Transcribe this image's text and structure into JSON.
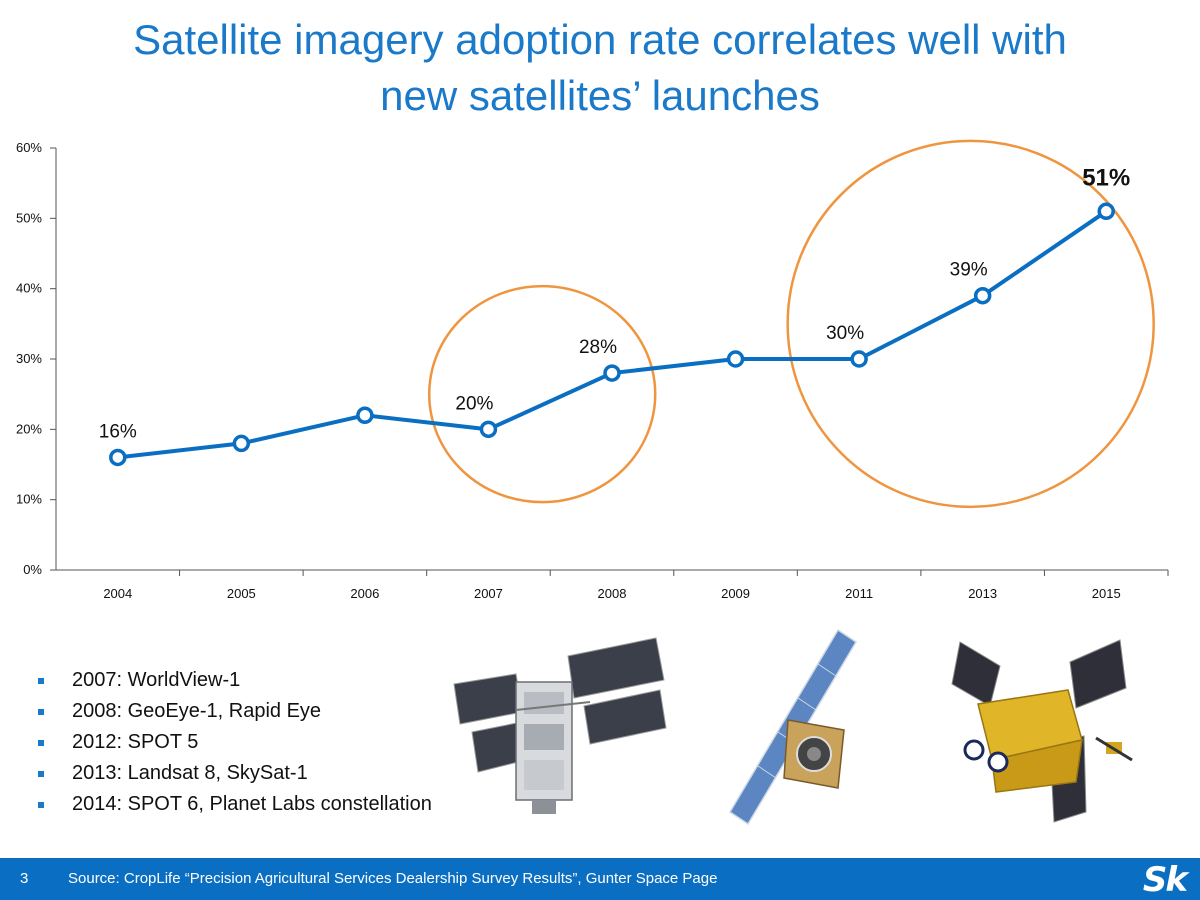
{
  "title_lines": [
    "Satellite imagery adoption rate correlates well with",
    "new satellites’ launches"
  ],
  "chart_data": {
    "type": "line",
    "title": "Satellite imagery adoption rate correlates well with new satellites’ launches",
    "categories": [
      "2004",
      "2005",
      "2006",
      "2007",
      "2008",
      "2009",
      "2011",
      "2013",
      "2015"
    ],
    "series": [
      {
        "values": [
          16,
          18,
          22,
          20,
          28,
          30,
          30,
          39,
          51
        ]
      }
    ],
    "data_labels": [
      "16%",
      "",
      "",
      "20%",
      "28%",
      "",
      "30%",
      "39%",
      "51%"
    ],
    "y_ticks": [
      "0%",
      "10%",
      "20%",
      "30%",
      "40%",
      "50%",
      "60%"
    ],
    "ylim": [
      0,
      60
    ],
    "line_color": "#0a6fc2",
    "highlight_color": "#f0953f",
    "highlights": [
      {
        "center": [
          "2007",
          "2008"
        ],
        "note": "circled"
      },
      {
        "center": [
          "2011",
          "2015"
        ],
        "note": "circled"
      }
    ],
    "xlabel": "",
    "ylabel": "",
    "grid": false
  },
  "bullets": [
    "2007: WorldView-1",
    "2008: GeoEye-1, Rapid Eye",
    "2012: SPOT 5",
    "2013: Landsat 8, SkySat-1",
    "2014: SPOT 6, Planet Labs constellation"
  ],
  "footer": {
    "page_number": "3",
    "source": "Source: CropLife “Precision Agricultural Services Dealership Survey Results”, Gunter Space Page",
    "logo": "Sk"
  },
  "colors": {
    "accent": "#1a7ac9",
    "footer_bg": "#0a6fc2"
  }
}
